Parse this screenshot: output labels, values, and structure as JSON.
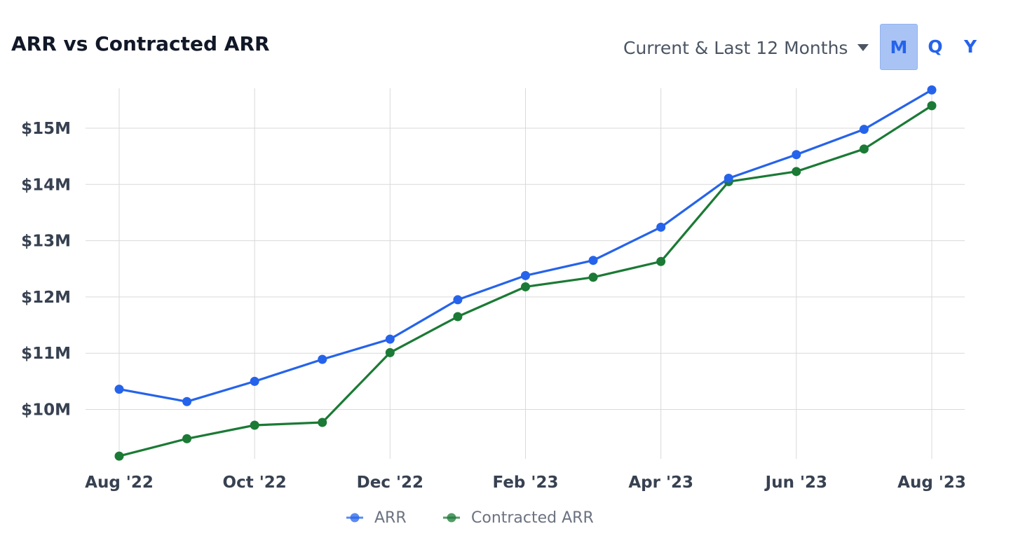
{
  "header": {
    "title": "ARR vs Contracted ARR",
    "range_label": "Current & Last 12 Months",
    "periods": [
      "M",
      "Q",
      "Y"
    ],
    "active_period": "M"
  },
  "colors": {
    "arr": "#2563eb",
    "contracted_arr": "#1b7a35",
    "grid": "#d9d9d9",
    "active_button": "#a9c3f5"
  },
  "chart_data": {
    "type": "line",
    "title": "ARR vs Contracted ARR",
    "x": [
      "Aug '22",
      "Sep '22",
      "Oct '22",
      "Nov '22",
      "Dec '22",
      "Jan '23",
      "Feb '23",
      "Mar '23",
      "Apr '23",
      "May '23",
      "Jun '23",
      "Jul '23",
      "Aug '23"
    ],
    "x_tick_labels": [
      "Aug '22",
      "Oct '22",
      "Dec '22",
      "Feb '23",
      "Apr '23",
      "Jun '23",
      "Aug '23"
    ],
    "y_ticks": [
      10,
      11,
      12,
      13,
      14,
      15
    ],
    "y_tick_labels": [
      "$10M",
      "$11M",
      "$12M",
      "$13M",
      "$14M",
      "$15M"
    ],
    "ylim": [
      9.2,
      15.7
    ],
    "y_unit": "$M",
    "grid": true,
    "legend_position": "bottom-center",
    "series": [
      {
        "name": "ARR",
        "values": [
          10.36,
          10.14,
          10.5,
          10.89,
          11.25,
          11.95,
          12.38,
          12.65,
          13.24,
          14.11,
          14.53,
          14.98,
          15.68
        ]
      },
      {
        "name": "Contracted ARR",
        "values": [
          9.17,
          9.48,
          9.72,
          9.77,
          11.01,
          11.65,
          12.18,
          12.35,
          12.63,
          14.05,
          14.23,
          14.63,
          15.4
        ]
      }
    ]
  }
}
